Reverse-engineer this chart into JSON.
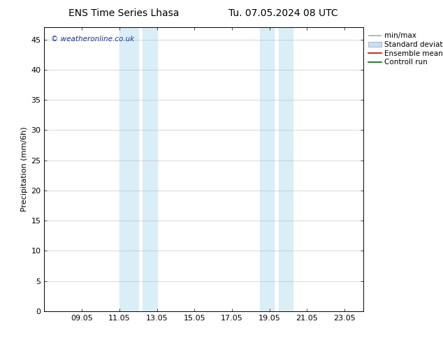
{
  "title_left": "ENS Time Series Lhasa",
  "title_right": "Tu. 07.05.2024 08 UTC",
  "xlabel": "",
  "ylabel": "Precipitation (mm/6h)",
  "xlim": [
    7.05,
    24.05
  ],
  "ylim": [
    0,
    47
  ],
  "yticks": [
    0,
    5,
    10,
    15,
    20,
    25,
    30,
    35,
    40,
    45
  ],
  "xticks": [
    9.05,
    11.05,
    13.05,
    15.05,
    17.05,
    19.05,
    21.05,
    23.05
  ],
  "xticklabels": [
    "09.05",
    "11.05",
    "13.05",
    "15.05",
    "17.05",
    "19.05",
    "21.05",
    "23.05"
  ],
  "shade_regions": [
    [
      11.05,
      12.05
    ],
    [
      12.3,
      13.05
    ],
    [
      18.55,
      19.3
    ],
    [
      19.55,
      20.3
    ]
  ],
  "shade_color": "#daeef7",
  "background_color": "#ffffff",
  "watermark": "© weatheronline.co.uk",
  "watermark_color": "#1a3a8c",
  "legend_items": [
    {
      "label": "min/max",
      "color": "#aaaaaa",
      "lw": 1.2
    },
    {
      "label": "Standard deviation",
      "color": "#c8dff0",
      "lw": 6
    },
    {
      "label": "Ensemble mean run",
      "color": "#cc0000",
      "lw": 1.2
    },
    {
      "label": "Controll run",
      "color": "#006600",
      "lw": 1.2
    }
  ],
  "title_fontsize": 10,
  "tick_fontsize": 8,
  "ylabel_fontsize": 8,
  "legend_fontsize": 7.5
}
